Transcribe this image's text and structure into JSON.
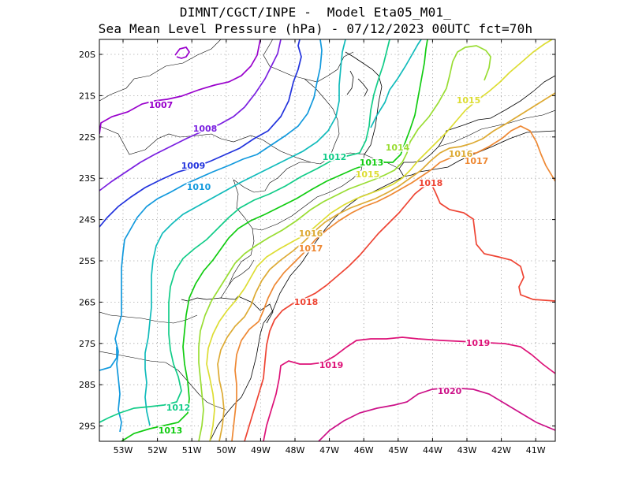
{
  "title": {
    "line1": "DIMNT/CGCT/INPE -  Model Eta05_M01_",
    "line2": "Sea Mean Level Pressure (hPa) - 07/12/2023 00UTC fct=70h"
  },
  "map": {
    "x_ticks": [
      "53W",
      "52W",
      "51W",
      "50W",
      "49W",
      "48W",
      "47W",
      "46W",
      "45W",
      "44W",
      "43W",
      "42W",
      "41W"
    ],
    "y_ticks": [
      "20S",
      "21S",
      "22S",
      "23S",
      "24S",
      "25S",
      "26S",
      "27S",
      "28S",
      "29S"
    ],
    "contours": [
      {
        "level": 1007,
        "label": "1007",
        "color": "#9900cc"
      },
      {
        "level": 1008,
        "label": "1008",
        "color": "#7a1fe0"
      },
      {
        "level": 1009,
        "label": "1009",
        "color": "#2233dd"
      },
      {
        "level": 1010,
        "label": "1010",
        "color": "#1199dd"
      },
      {
        "level": 1011,
        "label": "",
        "color": "#11bbbb"
      },
      {
        "level": 1012,
        "label": "1012",
        "color": "#11cc88"
      },
      {
        "level": 1013,
        "label": "1013",
        "color": "#11cc11"
      },
      {
        "level": 1014,
        "label": "1014",
        "color": "#99dd33"
      },
      {
        "level": 1015,
        "label": "1015",
        "color": "#dddd33"
      },
      {
        "level": 1016,
        "label": "1016",
        "color": "#ddaa33"
      },
      {
        "level": 1017,
        "label": "1017",
        "color": "#ee8833"
      },
      {
        "level": 1018,
        "label": "1018",
        "color": "#ee4433"
      },
      {
        "level": 1019,
        "label": "1019",
        "color": "#dd1177"
      },
      {
        "level": 1020,
        "label": "1020",
        "color": "#cc1188"
      }
    ]
  }
}
